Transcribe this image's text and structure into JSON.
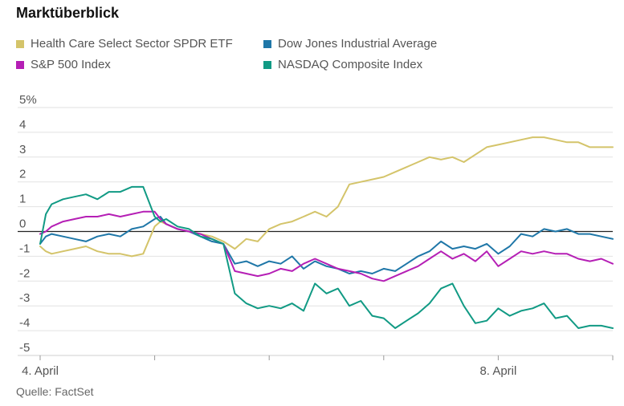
{
  "header": {
    "title": "Marktüberblick"
  },
  "footer": {
    "source": "Quelle: FactSet"
  },
  "chart_data": {
    "type": "line",
    "title": "Marktüberblick",
    "ylabel": "",
    "xlabel": "",
    "ylim": [
      -5,
      5
    ],
    "xlim": [
      0,
      1
    ],
    "y_ticks": [
      {
        "value": 5,
        "label": "5%"
      },
      {
        "value": 4,
        "label": "4"
      },
      {
        "value": 3,
        "label": "3"
      },
      {
        "value": 2,
        "label": "2"
      },
      {
        "value": 1,
        "label": "1"
      },
      {
        "value": 0,
        "label": "0"
      },
      {
        "value": -1,
        "label": "-1"
      },
      {
        "value": -2,
        "label": "-2"
      },
      {
        "value": -3,
        "label": "-3"
      },
      {
        "value": -4,
        "label": "-4"
      },
      {
        "value": -5,
        "label": "-5"
      }
    ],
    "x_ticks": [
      {
        "value": 0.0,
        "label": "4. April"
      },
      {
        "value": 0.2,
        "label": ""
      },
      {
        "value": 0.4,
        "label": ""
      },
      {
        "value": 0.6,
        "label": ""
      },
      {
        "value": 0.8,
        "label": "8. April"
      },
      {
        "value": 1.0,
        "label": ""
      }
    ],
    "grid": true,
    "legend_position": "top",
    "series": [
      {
        "name": "Health Care Select Sector SPDR ETF",
        "color": "#d4c46a",
        "x": [
          0.0,
          0.01,
          0.02,
          0.04,
          0.06,
          0.08,
          0.1,
          0.12,
          0.14,
          0.16,
          0.18,
          0.2,
          0.21,
          0.22,
          0.24,
          0.26,
          0.28,
          0.3,
          0.32,
          0.34,
          0.36,
          0.38,
          0.4,
          0.42,
          0.44,
          0.46,
          0.48,
          0.5,
          0.52,
          0.54,
          0.56,
          0.58,
          0.6,
          0.62,
          0.64,
          0.66,
          0.68,
          0.7,
          0.72,
          0.74,
          0.76,
          0.78,
          0.8,
          0.82,
          0.84,
          0.86,
          0.88,
          0.9,
          0.92,
          0.94,
          0.96,
          0.98,
          1.0
        ],
        "values": [
          -0.6,
          -0.8,
          -0.9,
          -0.8,
          -0.7,
          -0.6,
          -0.8,
          -0.9,
          -0.9,
          -1.0,
          -0.9,
          0.2,
          0.4,
          0.3,
          0.1,
          0.0,
          -0.1,
          -0.2,
          -0.4,
          -0.7,
          -0.3,
          -0.4,
          0.1,
          0.3,
          0.4,
          0.6,
          0.8,
          0.6,
          1.0,
          1.9,
          2.0,
          2.1,
          2.2,
          2.4,
          2.6,
          2.8,
          3.0,
          2.9,
          3.0,
          2.8,
          3.1,
          3.4,
          3.5,
          3.6,
          3.7,
          3.8,
          3.8,
          3.7,
          3.6,
          3.6,
          3.4,
          3.4,
          3.4
        ]
      },
      {
        "name": "Dow Jones Industrial Average",
        "color": "#1f77a8",
        "x": [
          0.0,
          0.01,
          0.02,
          0.04,
          0.06,
          0.08,
          0.1,
          0.12,
          0.14,
          0.16,
          0.18,
          0.2,
          0.21,
          0.22,
          0.24,
          0.26,
          0.28,
          0.3,
          0.32,
          0.34,
          0.36,
          0.38,
          0.4,
          0.42,
          0.44,
          0.46,
          0.48,
          0.5,
          0.52,
          0.54,
          0.56,
          0.58,
          0.6,
          0.62,
          0.64,
          0.66,
          0.68,
          0.7,
          0.72,
          0.74,
          0.76,
          0.78,
          0.8,
          0.82,
          0.84,
          0.86,
          0.88,
          0.9,
          0.92,
          0.94,
          0.96,
          0.98,
          1.0
        ],
        "values": [
          -0.5,
          -0.2,
          -0.1,
          -0.2,
          -0.3,
          -0.4,
          -0.2,
          -0.1,
          -0.2,
          0.1,
          0.2,
          0.5,
          0.6,
          0.3,
          0.1,
          0.0,
          -0.2,
          -0.4,
          -0.5,
          -1.3,
          -1.2,
          -1.4,
          -1.2,
          -1.3,
          -1.0,
          -1.5,
          -1.2,
          -1.4,
          -1.5,
          -1.7,
          -1.6,
          -1.7,
          -1.5,
          -1.6,
          -1.3,
          -1.0,
          -0.8,
          -0.4,
          -0.7,
          -0.6,
          -0.7,
          -0.5,
          -0.9,
          -0.6,
          -0.1,
          -0.2,
          0.1,
          0.0,
          0.1,
          -0.1,
          -0.1,
          -0.2,
          -0.3
        ]
      },
      {
        "name": "S&P 500 Index",
        "color": "#b51fb5",
        "x": [
          0.0,
          0.01,
          0.02,
          0.04,
          0.06,
          0.08,
          0.1,
          0.12,
          0.14,
          0.16,
          0.18,
          0.2,
          0.21,
          0.22,
          0.24,
          0.26,
          0.28,
          0.3,
          0.32,
          0.34,
          0.36,
          0.38,
          0.4,
          0.42,
          0.44,
          0.46,
          0.48,
          0.5,
          0.52,
          0.54,
          0.56,
          0.58,
          0.6,
          0.62,
          0.64,
          0.66,
          0.68,
          0.7,
          0.72,
          0.74,
          0.76,
          0.78,
          0.8,
          0.82,
          0.84,
          0.86,
          0.88,
          0.9,
          0.92,
          0.94,
          0.96,
          0.98,
          1.0
        ],
        "values": [
          -0.1,
          0.0,
          0.2,
          0.4,
          0.5,
          0.6,
          0.6,
          0.7,
          0.6,
          0.7,
          0.8,
          0.8,
          0.5,
          0.3,
          0.1,
          0.0,
          -0.1,
          -0.3,
          -0.5,
          -1.6,
          -1.7,
          -1.8,
          -1.7,
          -1.5,
          -1.6,
          -1.3,
          -1.1,
          -1.3,
          -1.5,
          -1.6,
          -1.7,
          -1.9,
          -2.0,
          -1.8,
          -1.6,
          -1.4,
          -1.1,
          -0.8,
          -1.1,
          -0.9,
          -1.2,
          -0.8,
          -1.4,
          -1.1,
          -0.8,
          -0.9,
          -0.8,
          -0.9,
          -0.9,
          -1.1,
          -1.2,
          -1.1,
          -1.3
        ]
      },
      {
        "name": "NASDAQ Composite Index",
        "color": "#119a84",
        "x": [
          0.0,
          0.01,
          0.02,
          0.04,
          0.06,
          0.08,
          0.1,
          0.12,
          0.14,
          0.16,
          0.18,
          0.2,
          0.21,
          0.22,
          0.24,
          0.26,
          0.28,
          0.3,
          0.32,
          0.34,
          0.36,
          0.38,
          0.4,
          0.42,
          0.44,
          0.46,
          0.48,
          0.5,
          0.52,
          0.54,
          0.56,
          0.58,
          0.6,
          0.62,
          0.64,
          0.66,
          0.68,
          0.7,
          0.72,
          0.74,
          0.76,
          0.78,
          0.8,
          0.82,
          0.84,
          0.86,
          0.88,
          0.9,
          0.92,
          0.94,
          0.96,
          0.98,
          1.0
        ],
        "values": [
          -0.5,
          0.7,
          1.1,
          1.3,
          1.4,
          1.5,
          1.3,
          1.6,
          1.6,
          1.8,
          1.8,
          0.6,
          0.4,
          0.5,
          0.2,
          0.1,
          -0.2,
          -0.3,
          -0.5,
          -2.5,
          -2.9,
          -3.1,
          -3.0,
          -3.1,
          -2.9,
          -3.2,
          -2.1,
          -2.5,
          -2.3,
          -3.0,
          -2.8,
          -3.4,
          -3.5,
          -3.9,
          -3.6,
          -3.3,
          -2.9,
          -2.3,
          -2.1,
          -3.0,
          -3.7,
          -3.6,
          -3.1,
          -3.4,
          -3.2,
          -3.1,
          -2.9,
          -3.5,
          -3.4,
          -3.9,
          -3.8,
          -3.8,
          -3.9
        ]
      }
    ]
  }
}
